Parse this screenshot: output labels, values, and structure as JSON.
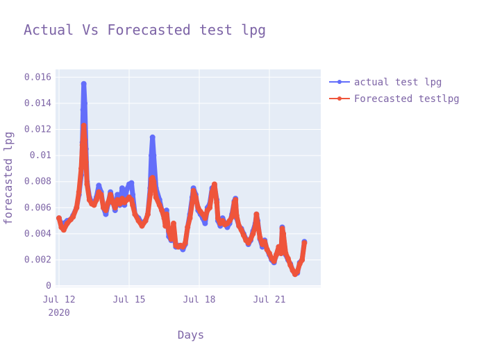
{
  "chart_data": {
    "type": "line",
    "title": "Actual Vs Forecasted test lpg",
    "xlabel": "Days",
    "ylabel": "forecasted lpg",
    "x_ticks": [
      {
        "label": "Jul 12",
        "sublabel": "2020",
        "day": 12
      },
      {
        "label": "Jul 15",
        "sublabel": "",
        "day": 15
      },
      {
        "label": "Jul 18",
        "sublabel": "",
        "day": 18
      },
      {
        "label": "Jul 21",
        "sublabel": "",
        "day": 21
      }
    ],
    "y_ticks": [
      {
        "label": "0",
        "value": 0
      },
      {
        "label": "0.002",
        "value": 0.002
      },
      {
        "label": "0.004",
        "value": 0.004
      },
      {
        "label": "0.006",
        "value": 0.006
      },
      {
        "label": "0.008",
        "value": 0.008
      },
      {
        "label": "0.01",
        "value": 0.01
      },
      {
        "label": "0.012",
        "value": 0.012
      },
      {
        "label": "0.014",
        "value": 0.014
      },
      {
        "label": "0.016",
        "value": 0.016
      }
    ],
    "xlim": [
      11.85,
      23.2
    ],
    "ylim": [
      -0.0001,
      0.0166
    ],
    "grid": true,
    "legend_position": "top-right",
    "series": [
      {
        "name": "actual test lpg",
        "color": "#636efa",
        "points": [
          [
            12.0,
            0.0052
          ],
          [
            12.1,
            0.0047
          ],
          [
            12.2,
            0.0048
          ],
          [
            12.35,
            0.005
          ],
          [
            12.5,
            0.0051
          ],
          [
            12.6,
            0.0054
          ],
          [
            12.75,
            0.006
          ],
          [
            12.85,
            0.007
          ],
          [
            12.95,
            0.0085
          ],
          [
            13.0,
            0.011
          ],
          [
            13.03,
            0.0135
          ],
          [
            13.06,
            0.0155
          ],
          [
            13.1,
            0.014
          ],
          [
            13.15,
            0.0105
          ],
          [
            13.2,
            0.008
          ],
          [
            13.3,
            0.0068
          ],
          [
            13.4,
            0.0064
          ],
          [
            13.5,
            0.0063
          ],
          [
            13.6,
            0.0068
          ],
          [
            13.7,
            0.0077
          ],
          [
            13.8,
            0.0072
          ],
          [
            13.9,
            0.006
          ],
          [
            14.0,
            0.0055
          ],
          [
            14.1,
            0.0063
          ],
          [
            14.2,
            0.0072
          ],
          [
            14.3,
            0.0065
          ],
          [
            14.4,
            0.0058
          ],
          [
            14.5,
            0.007
          ],
          [
            14.6,
            0.0062
          ],
          [
            14.7,
            0.0075
          ],
          [
            14.8,
            0.0062
          ],
          [
            14.9,
            0.0074
          ],
          [
            15.0,
            0.0078
          ],
          [
            15.1,
            0.0079
          ],
          [
            15.15,
            0.007
          ],
          [
            15.25,
            0.0055
          ],
          [
            15.4,
            0.0052
          ],
          [
            15.55,
            0.0048
          ],
          [
            15.7,
            0.005
          ],
          [
            15.8,
            0.0055
          ],
          [
            15.9,
            0.0075
          ],
          [
            15.95,
            0.01
          ],
          [
            16.0,
            0.0114
          ],
          [
            16.05,
            0.01
          ],
          [
            16.15,
            0.0075
          ],
          [
            16.3,
            0.0066
          ],
          [
            16.4,
            0.0058
          ],
          [
            16.5,
            0.0052
          ],
          [
            16.55,
            0.0048
          ],
          [
            16.6,
            0.0058
          ],
          [
            16.7,
            0.0038
          ],
          [
            16.8,
            0.0035
          ],
          [
            16.9,
            0.004
          ],
          [
            17.0,
            0.003
          ],
          [
            17.1,
            0.0031
          ],
          [
            17.2,
            0.003
          ],
          [
            17.3,
            0.0028
          ],
          [
            17.4,
            0.0032
          ],
          [
            17.5,
            0.0045
          ],
          [
            17.6,
            0.0055
          ],
          [
            17.7,
            0.0068
          ],
          [
            17.75,
            0.0075
          ],
          [
            17.85,
            0.007
          ],
          [
            17.95,
            0.0058
          ],
          [
            18.05,
            0.0055
          ],
          [
            18.15,
            0.0052
          ],
          [
            18.25,
            0.0048
          ],
          [
            18.35,
            0.006
          ],
          [
            18.45,
            0.0063
          ],
          [
            18.55,
            0.0075
          ],
          [
            18.65,
            0.0077
          ],
          [
            18.75,
            0.0066
          ],
          [
            18.8,
            0.005
          ],
          [
            18.9,
            0.0046
          ],
          [
            19.0,
            0.0052
          ],
          [
            19.1,
            0.0048
          ],
          [
            19.2,
            0.0045
          ],
          [
            19.3,
            0.0048
          ],
          [
            19.4,
            0.0055
          ],
          [
            19.5,
            0.0065
          ],
          [
            19.55,
            0.0067
          ],
          [
            19.6,
            0.0052
          ],
          [
            19.7,
            0.0046
          ],
          [
            19.8,
            0.0044
          ],
          [
            19.9,
            0.004
          ],
          [
            20.0,
            0.0036
          ],
          [
            20.1,
            0.0032
          ],
          [
            20.2,
            0.0035
          ],
          [
            20.3,
            0.0042
          ],
          [
            20.4,
            0.0048
          ],
          [
            20.45,
            0.0055
          ],
          [
            20.5,
            0.005
          ],
          [
            20.6,
            0.0036
          ],
          [
            20.7,
            0.003
          ],
          [
            20.8,
            0.0035
          ],
          [
            20.9,
            0.0028
          ],
          [
            21.0,
            0.0024
          ],
          [
            21.1,
            0.002
          ],
          [
            21.2,
            0.0018
          ],
          [
            21.3,
            0.0024
          ],
          [
            21.4,
            0.003
          ],
          [
            21.5,
            0.0025
          ],
          [
            21.55,
            0.0045
          ],
          [
            21.6,
            0.004
          ],
          [
            21.7,
            0.0024
          ],
          [
            21.8,
            0.002
          ],
          [
            21.9,
            0.0017
          ],
          [
            22.0,
            0.0012
          ],
          [
            22.1,
            0.0009
          ],
          [
            22.2,
            0.001
          ],
          [
            22.3,
            0.0018
          ],
          [
            22.4,
            0.002
          ],
          [
            22.5,
            0.0034
          ]
        ]
      },
      {
        "name": "Forecasted testlpg",
        "color": "#ef553b",
        "points": [
          [
            12.0,
            0.0052
          ],
          [
            12.1,
            0.0045
          ],
          [
            12.2,
            0.0043
          ],
          [
            12.35,
            0.0048
          ],
          [
            12.5,
            0.0051
          ],
          [
            12.6,
            0.0053
          ],
          [
            12.75,
            0.006
          ],
          [
            12.85,
            0.0072
          ],
          [
            12.95,
            0.009
          ],
          [
            13.0,
            0.0108
          ],
          [
            13.06,
            0.0123
          ],
          [
            13.1,
            0.0112
          ],
          [
            13.15,
            0.0095
          ],
          [
            13.2,
            0.0078
          ],
          [
            13.3,
            0.0066
          ],
          [
            13.4,
            0.0063
          ],
          [
            13.5,
            0.0062
          ],
          [
            13.6,
            0.0066
          ],
          [
            13.7,
            0.0072
          ],
          [
            13.8,
            0.007
          ],
          [
            13.9,
            0.006
          ],
          [
            14.0,
            0.0058
          ],
          [
            14.1,
            0.0064
          ],
          [
            14.2,
            0.007
          ],
          [
            14.3,
            0.0064
          ],
          [
            14.4,
            0.006
          ],
          [
            14.5,
            0.0066
          ],
          [
            14.6,
            0.0063
          ],
          [
            14.7,
            0.0067
          ],
          [
            14.8,
            0.0064
          ],
          [
            14.9,
            0.0066
          ],
          [
            15.0,
            0.0068
          ],
          [
            15.1,
            0.0066
          ],
          [
            15.15,
            0.0062
          ],
          [
            15.25,
            0.0055
          ],
          [
            15.4,
            0.005
          ],
          [
            15.55,
            0.0046
          ],
          [
            15.7,
            0.005
          ],
          [
            15.8,
            0.0055
          ],
          [
            15.9,
            0.007
          ],
          [
            15.95,
            0.0082
          ],
          [
            16.0,
            0.0083
          ],
          [
            16.05,
            0.008
          ],
          [
            16.15,
            0.0068
          ],
          [
            16.3,
            0.0062
          ],
          [
            16.4,
            0.0058
          ],
          [
            16.5,
            0.0052
          ],
          [
            16.55,
            0.0046
          ],
          [
            16.6,
            0.0055
          ],
          [
            16.7,
            0.0042
          ],
          [
            16.8,
            0.0036
          ],
          [
            16.9,
            0.0048
          ],
          [
            17.0,
            0.0031
          ],
          [
            17.1,
            0.003
          ],
          [
            17.2,
            0.0031
          ],
          [
            17.3,
            0.003
          ],
          [
            17.4,
            0.0033
          ],
          [
            17.5,
            0.0045
          ],
          [
            17.6,
            0.0052
          ],
          [
            17.7,
            0.0064
          ],
          [
            17.75,
            0.0073
          ],
          [
            17.85,
            0.0068
          ],
          [
            17.95,
            0.006
          ],
          [
            18.05,
            0.0057
          ],
          [
            18.15,
            0.0055
          ],
          [
            18.25,
            0.0052
          ],
          [
            18.35,
            0.0058
          ],
          [
            18.45,
            0.006
          ],
          [
            18.55,
            0.0072
          ],
          [
            18.65,
            0.0078
          ],
          [
            18.75,
            0.0064
          ],
          [
            18.8,
            0.0052
          ],
          [
            18.9,
            0.0048
          ],
          [
            19.0,
            0.005
          ],
          [
            19.1,
            0.0047
          ],
          [
            19.2,
            0.0048
          ],
          [
            19.3,
            0.005
          ],
          [
            19.4,
            0.0053
          ],
          [
            19.5,
            0.0064
          ],
          [
            19.55,
            0.0066
          ],
          [
            19.6,
            0.0054
          ],
          [
            19.7,
            0.0046
          ],
          [
            19.8,
            0.0043
          ],
          [
            19.9,
            0.0039
          ],
          [
            20.0,
            0.0035
          ],
          [
            20.1,
            0.0033
          ],
          [
            20.2,
            0.0036
          ],
          [
            20.3,
            0.004
          ],
          [
            20.4,
            0.0046
          ],
          [
            20.45,
            0.0055
          ],
          [
            20.5,
            0.0048
          ],
          [
            20.6,
            0.0037
          ],
          [
            20.7,
            0.0032
          ],
          [
            20.8,
            0.0034
          ],
          [
            20.9,
            0.0028
          ],
          [
            21.0,
            0.0025
          ],
          [
            21.1,
            0.0021
          ],
          [
            21.2,
            0.0019
          ],
          [
            21.3,
            0.0024
          ],
          [
            21.4,
            0.003
          ],
          [
            21.5,
            0.0025
          ],
          [
            21.55,
            0.0044
          ],
          [
            21.6,
            0.004
          ],
          [
            21.7,
            0.0025
          ],
          [
            21.8,
            0.0021
          ],
          [
            21.9,
            0.0016
          ],
          [
            22.0,
            0.0012
          ],
          [
            22.1,
            0.0009
          ],
          [
            22.2,
            0.0011
          ],
          [
            22.3,
            0.0017
          ],
          [
            22.4,
            0.002
          ],
          [
            22.5,
            0.0033
          ]
        ]
      }
    ]
  }
}
